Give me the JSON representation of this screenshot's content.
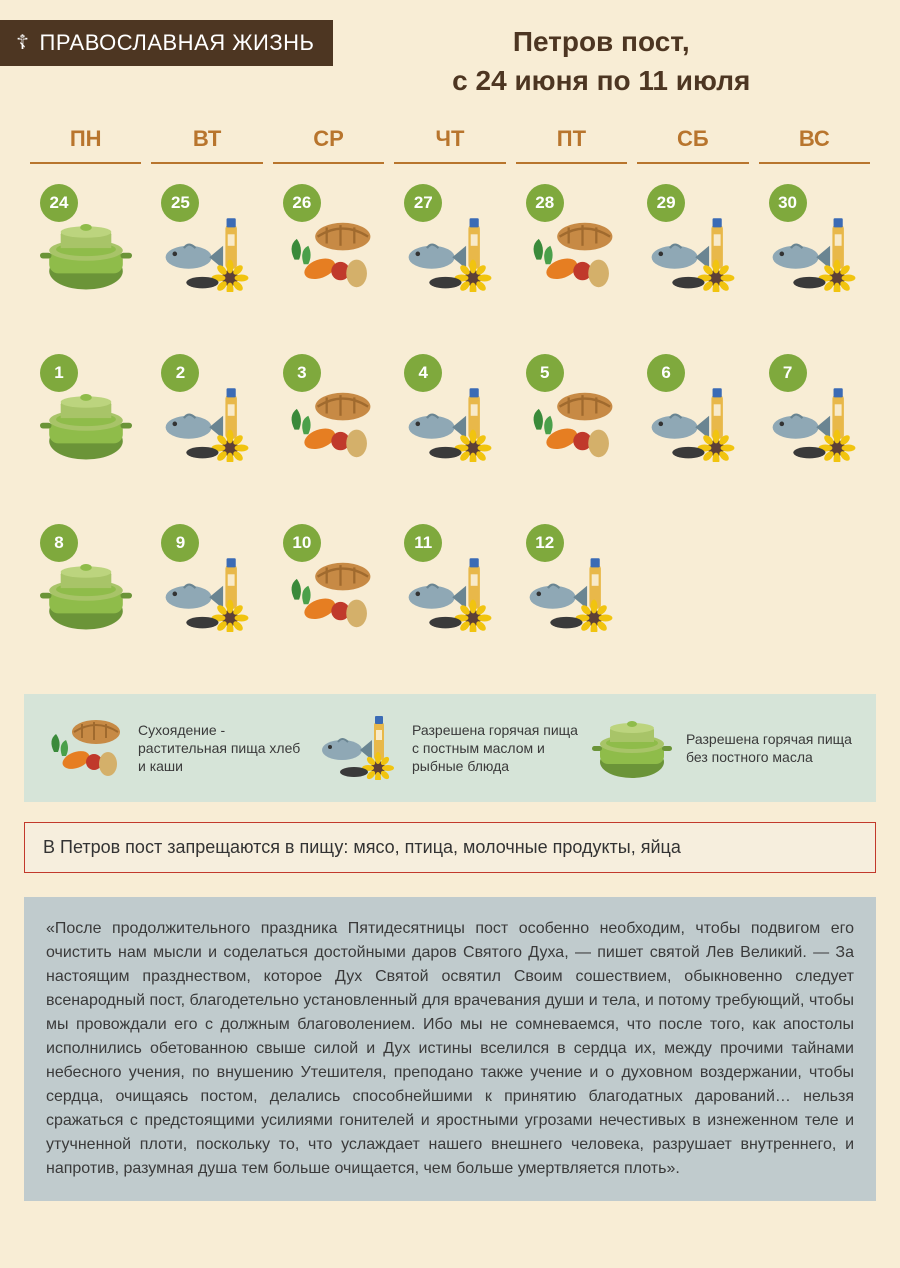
{
  "logo": {
    "glyph": "☦",
    "text": "ПРАВОСЛАВНАЯ ЖИЗНЬ"
  },
  "title_l1": "Петров пост,",
  "title_l2": "с 24 июня по 11 июля",
  "dow": [
    "ПН",
    "ВТ",
    "СР",
    "ЧТ",
    "ПТ",
    "СБ",
    "ВС"
  ],
  "colors": {
    "badge_bg": "#7fa93d",
    "badge_fg": "#ffffff",
    "dow": "#b8752d",
    "page_bg": "#f8edd5",
    "legend_bg": "#d6e4d8",
    "warn_border": "#c2392b",
    "warn_bg": "#f6eedd",
    "quote_bg": "#c0cbcd",
    "logo_bg": "#4d3622",
    "pot_body": "#8fbc4a",
    "pot_dark": "#6b9438",
    "pot_lid": "#a8c468",
    "bread": "#c78a45",
    "bread_dark": "#a06a2e",
    "veg_orange": "#e67e22",
    "veg_green": "#3a8a3a",
    "veg_red": "#c0392b",
    "fish": "#8fa8b5",
    "fish_dark": "#6a8592",
    "sunflower": "#f1c40f",
    "sunflower_center": "#5d4037",
    "oil_bottle": "#e8b84a",
    "oil_cap": "#3b6bb5",
    "seeds": "#3a3a3a"
  },
  "weeks": [
    [
      {
        "d": "24",
        "t": "pot"
      },
      {
        "d": "25",
        "t": "fishoil"
      },
      {
        "d": "26",
        "t": "dry"
      },
      {
        "d": "27",
        "t": "fishoil"
      },
      {
        "d": "28",
        "t": "dry"
      },
      {
        "d": "29",
        "t": "fishoil"
      },
      {
        "d": "30",
        "t": "fishoil"
      }
    ],
    [
      {
        "d": "1",
        "t": "pot"
      },
      {
        "d": "2",
        "t": "fishoil"
      },
      {
        "d": "3",
        "t": "dry"
      },
      {
        "d": "4",
        "t": "fishoil"
      },
      {
        "d": "5",
        "t": "dry"
      },
      {
        "d": "6",
        "t": "fishoil"
      },
      {
        "d": "7",
        "t": "fishoil"
      }
    ],
    [
      {
        "d": "8",
        "t": "pot"
      },
      {
        "d": "9",
        "t": "fishoil"
      },
      {
        "d": "10",
        "t": "dry"
      },
      {
        "d": "11",
        "t": "fishoil"
      },
      {
        "d": "12",
        "t": "fishoil"
      }
    ]
  ],
  "legend": [
    {
      "t": "dry",
      "text": "Сухоядение - растительная пища хлеб и каши"
    },
    {
      "t": "fishoil",
      "text": "Разрешена горячая пища с постным маслом и рыбные блюда"
    },
    {
      "t": "pot",
      "text": "Разрешена горячая пища без постного масла"
    }
  ],
  "warn": "В Петров пост  запрещаются в пищу:  мясо, птица, молочные продукты, яйца",
  "quote": "«После продолжительного праздника Пятидесятницы пост особенно необходим, чтобы подвигом его очистить нам мысли и соделаться достойными даров Святого Духа, — пишет святой Лев Великий. — За настоящим празднеством, которое Дух Святой освятил Своим сошествием, обыкновенно следует всенародный пост, благодетельно установленный для врачевания души и тела, и потому требующий, чтобы мы провождали его с должным благоволением. Ибо мы не сомневаемся, что после того, как апостолы исполнились обетованною свыше силой и Дух истины вселился в сердца их, между прочими тайнами небесного учения, по внушению Утешителя, преподано также учение и о духовном воздержании, чтобы сердца, очищаясь постом, делались способнейшими к принятию благодатных дарований… нельзя сражаться с предстоящими усилиями гонителей и яростными угрозами нечестивых в изнеженном теле и утучненной плоти, поскольку то, что услаждает нашего внешнего человека, разрушает внутреннего, и напротив, разумная душа тем больше очищается, чем больше умертвляется плоть»."
}
